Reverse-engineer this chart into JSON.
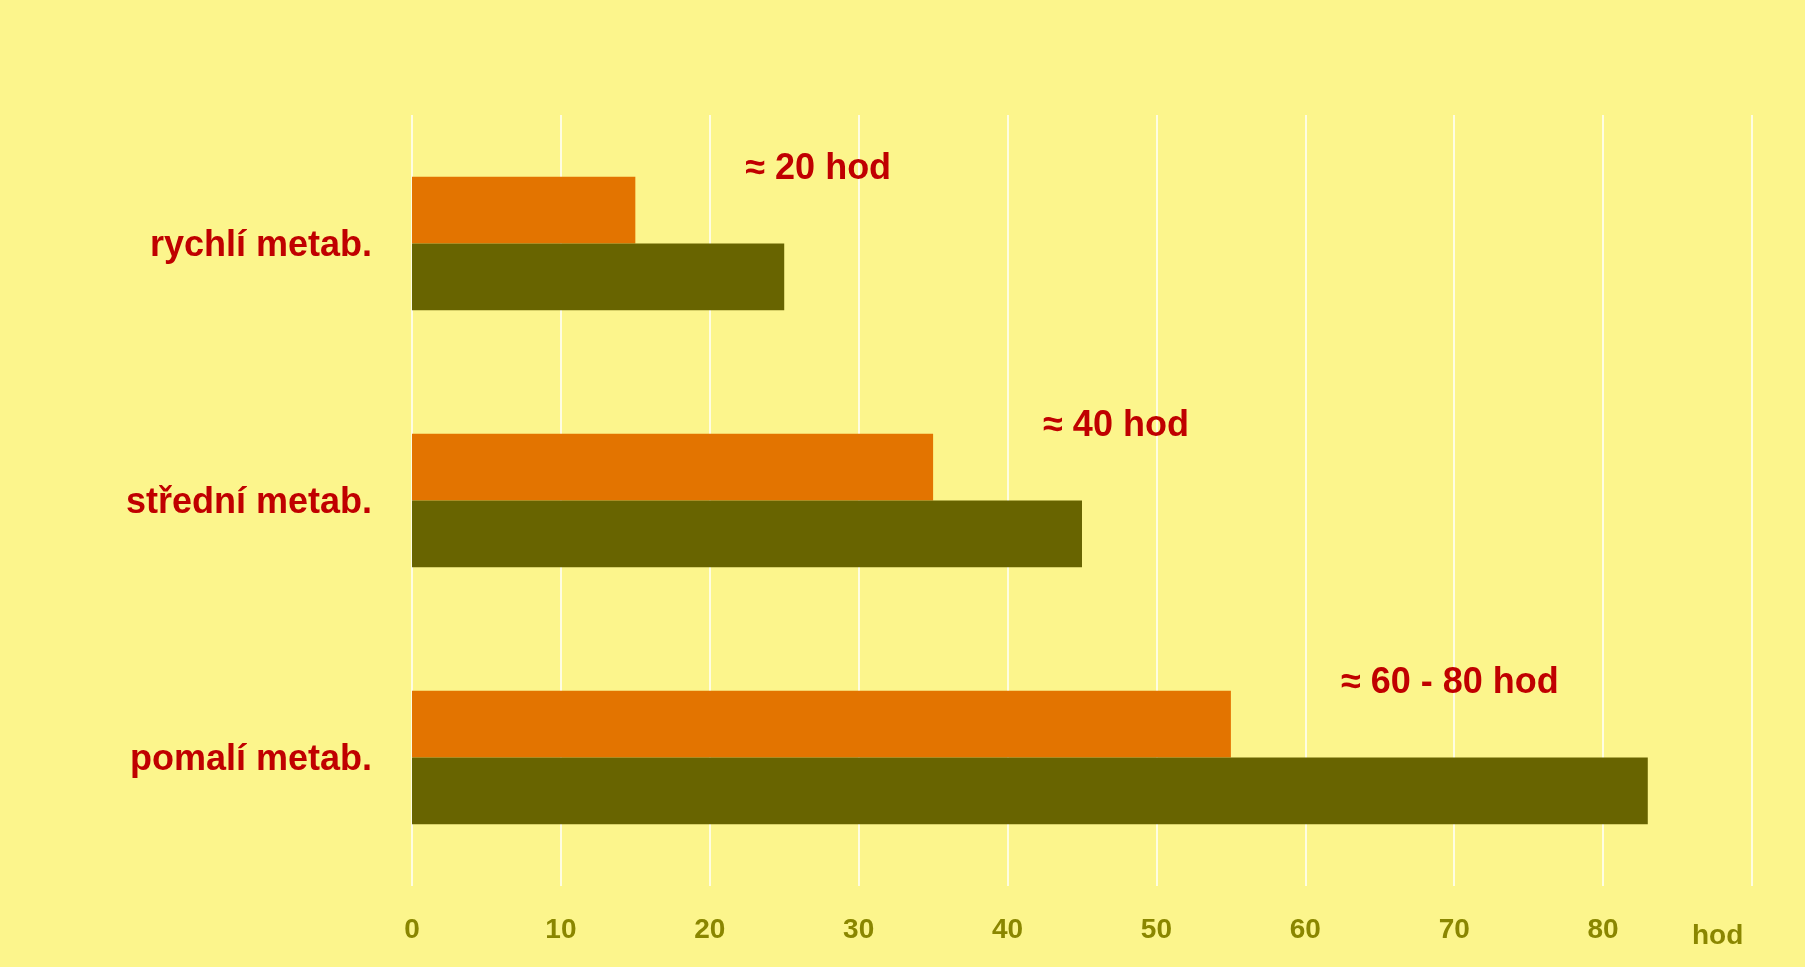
{
  "chart_data": {
    "type": "bar",
    "orientation": "horizontal",
    "categories": [
      "rychlí metab.",
      "střední metab.",
      "pomalí metab."
    ],
    "series": [
      {
        "color": "#e37400",
        "values": [
          15,
          35,
          55
        ]
      },
      {
        "color": "#686400",
        "values": [
          25,
          45,
          83
        ]
      }
    ],
    "xlabel": "hod",
    "xlim": [
      0,
      90
    ],
    "xticks": [
      0,
      10,
      20,
      30,
      40,
      50,
      60,
      70,
      80,
      {
        "value": 90,
        "label": null
      }
    ],
    "grid": "x",
    "annotations": [
      "≈ 20 hod",
      "≈ 40 hod",
      "≈ 60 - 80 hod"
    ]
  }
}
